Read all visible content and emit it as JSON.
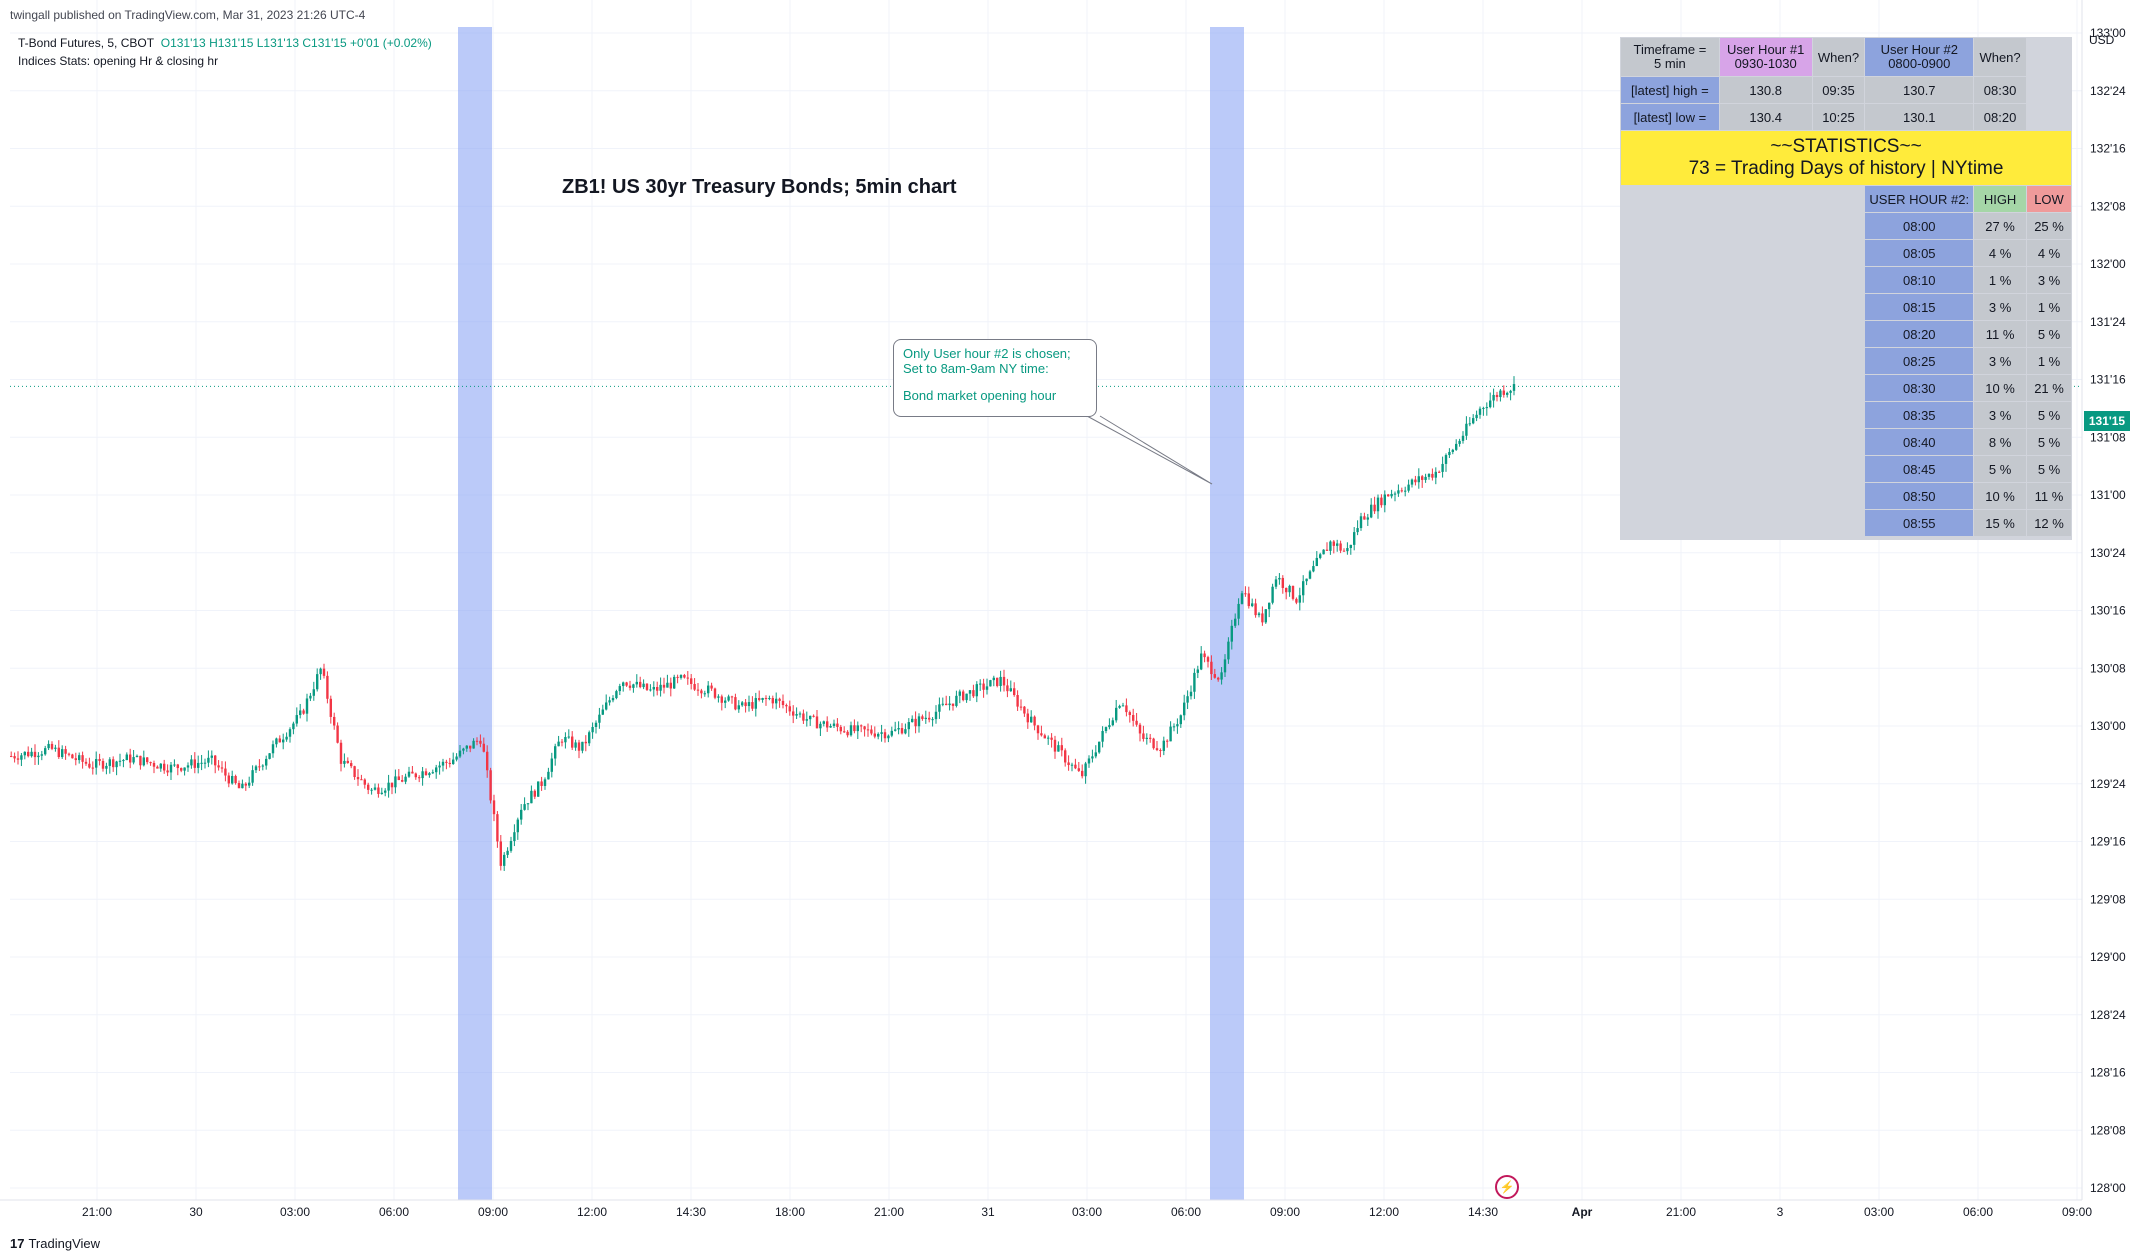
{
  "published_by": "twingall published on TradingView.com, Mar 31, 2023 21:26 UTC-4",
  "legend": {
    "symbol": "T-Bond Futures, 5, CBOT",
    "ohlc": "O131'13  H131'15  L131'13  C131'15  +0'01 (+0.02%)",
    "indicator": "Indices Stats: opening Hr & closing hr"
  },
  "chart_title": "ZB1! US 30yr Treasury Bonds; 5min chart",
  "annotation": {
    "line1": "Only User hour #2 is chosen;",
    "line2": "Set to 8am-9am NY time:",
    "line3": "Bond market opening hour"
  },
  "currency": "USD",
  "last_price_label": "131'15",
  "footer_brand": "TradingView",
  "colors": {
    "up": "#089981",
    "down": "#f23645",
    "highlight": "#8ea6f5",
    "stats_yellow": "#ffeb3b"
  },
  "stats_table": {
    "header": {
      "timeframe": "Timeframe =\n5 min",
      "user_hour_1": "User Hour #1\n0930-1030",
      "when_1": "When?",
      "user_hour_2": "User Hour #2\n0800-0900",
      "when_2": "When?"
    },
    "high_row": {
      "label": "[latest] high =",
      "uh1": "130.8",
      "when1": "09:35",
      "uh2": "130.7",
      "when2": "08:30"
    },
    "low_row": {
      "label": "[latest]  low =",
      "uh1": "130.4",
      "when1": "10:25",
      "uh2": "130.1",
      "when2": "08:20"
    },
    "banner": {
      "line1": "~~STATISTICS~~",
      "line2": "73 = Trading Days of history | NYtime"
    },
    "stats_header": {
      "label": "USER HOUR #2:",
      "high": "HIGH",
      "low": "LOW"
    },
    "rows": [
      {
        "time": "08:00",
        "high": "27 %",
        "low": "25 %"
      },
      {
        "time": "08:05",
        "high": "4 %",
        "low": "4 %"
      },
      {
        "time": "08:10",
        "high": "1 %",
        "low": "3 %"
      },
      {
        "time": "08:15",
        "high": "3 %",
        "low": "1 %"
      },
      {
        "time": "08:20",
        "high": "11 %",
        "low": "5 %"
      },
      {
        "time": "08:25",
        "high": "3 %",
        "low": "1 %"
      },
      {
        "time": "08:30",
        "high": "10 %",
        "low": "21 %"
      },
      {
        "time": "08:35",
        "high": "3 %",
        "low": "5 %"
      },
      {
        "time": "08:40",
        "high": "8 %",
        "low": "5 %"
      },
      {
        "time": "08:45",
        "high": "5 %",
        "low": "5 %"
      },
      {
        "time": "08:50",
        "high": "10 %",
        "low": "11 %"
      },
      {
        "time": "08:55",
        "high": "15 %",
        "low": "12 %"
      }
    ]
  },
  "chart_data": {
    "type": "candlestick",
    "title": "ZB1! US 30yr Treasury Bonds; 5min chart",
    "y_unit": "32nds",
    "y_ticks": [
      "133'00",
      "132'24",
      "132'16",
      "132'08",
      "132'00",
      "131'24",
      "131'16",
      "131'08",
      "131'00",
      "130'24",
      "130'16",
      "130'08",
      "130'00",
      "129'24",
      "129'16",
      "129'08",
      "129'00",
      "128'24",
      "128'16",
      "128'08",
      "128'00"
    ],
    "y_tick_values": [
      133.0,
      132.75,
      132.5,
      132.25,
      132.0,
      131.75,
      131.5,
      131.25,
      131.0,
      130.75,
      130.5,
      130.25,
      130.0,
      129.75,
      129.5,
      129.25,
      129.0,
      128.75,
      128.5,
      128.25,
      128.0
    ],
    "x_ticks": [
      "21:00",
      "30",
      "03:00",
      "06:00",
      "09:00",
      "12:00",
      "14:30",
      "18:00",
      "21:00",
      "31",
      "03:00",
      "06:00",
      "09:00",
      "12:00",
      "14:30",
      "Apr",
      "21:00",
      "3",
      "03:00",
      "06:00",
      "09:00"
    ],
    "ylim": [
      127.98,
      133.05
    ],
    "last_close": 131.47,
    "highlight_bands": [
      "08:00-09:00 Mar 30",
      "08:00-09:00 Mar 31"
    ],
    "close_path": [
      [
        0,
        129.87
      ],
      [
        40,
        129.9
      ],
      [
        80,
        129.83
      ],
      [
        120,
        129.86
      ],
      [
        160,
        129.82
      ],
      [
        200,
        129.85
      ],
      [
        230,
        129.72
      ],
      [
        260,
        129.9
      ],
      [
        290,
        130.05
      ],
      [
        310,
        130.25
      ],
      [
        330,
        129.85
      ],
      [
        360,
        129.72
      ],
      [
        380,
        129.75
      ],
      [
        410,
        129.8
      ],
      [
        440,
        129.85
      ],
      [
        470,
        129.95
      ],
      [
        490,
        129.4
      ],
      [
        510,
        129.65
      ],
      [
        530,
        129.75
      ],
      [
        550,
        129.95
      ],
      [
        570,
        129.9
      ],
      [
        590,
        130.05
      ],
      [
        610,
        130.2
      ],
      [
        640,
        130.15
      ],
      [
        670,
        130.2
      ],
      [
        700,
        130.15
      ],
      [
        730,
        130.08
      ],
      [
        760,
        130.12
      ],
      [
        800,
        130.02
      ],
      [
        840,
        129.98
      ],
      [
        880,
        129.97
      ],
      [
        920,
        130.05
      ],
      [
        950,
        130.13
      ],
      [
        990,
        130.2
      ],
      [
        1020,
        130.02
      ],
      [
        1050,
        129.88
      ],
      [
        1070,
        129.78
      ],
      [
        1090,
        129.95
      ],
      [
        1110,
        130.12
      ],
      [
        1130,
        129.95
      ],
      [
        1150,
        129.91
      ],
      [
        1170,
        130.05
      ],
      [
        1190,
        130.3
      ],
      [
        1210,
        130.2
      ],
      [
        1230,
        130.6
      ],
      [
        1250,
        130.45
      ],
      [
        1265,
        130.65
      ],
      [
        1285,
        130.55
      ],
      [
        1305,
        130.7
      ],
      [
        1320,
        130.8
      ],
      [
        1335,
        130.75
      ],
      [
        1350,
        130.9
      ],
      [
        1375,
        131.0
      ],
      [
        1400,
        131.05
      ],
      [
        1425,
        131.1
      ],
      [
        1450,
        131.25
      ],
      [
        1470,
        131.38
      ],
      [
        1490,
        131.45
      ],
      [
        1503,
        131.47
      ]
    ]
  }
}
